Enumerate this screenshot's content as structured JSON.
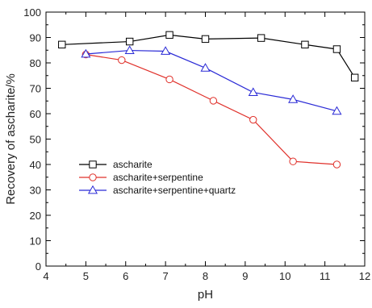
{
  "chart_data": {
    "type": "line",
    "title": "",
    "xlabel": "pH",
    "ylabel": "Recovery of ascharite/%",
    "xlim": [
      4,
      12
    ],
    "ylim": [
      0,
      100
    ],
    "xticks": [
      4,
      5,
      6,
      7,
      8,
      9,
      10,
      11,
      12
    ],
    "yticks": [
      0,
      10,
      20,
      30,
      40,
      50,
      60,
      70,
      80,
      90,
      100
    ],
    "grid": false,
    "legend_position": "lower-left",
    "series": [
      {
        "name": "ascharite",
        "color": "#000000",
        "marker": "square",
        "x": [
          4.4,
          6.1,
          7.1,
          8.0,
          9.4,
          10.5,
          11.3,
          11.75
        ],
        "y": [
          87.2,
          88.4,
          91.0,
          89.4,
          89.8,
          87.2,
          85.4,
          74.2
        ]
      },
      {
        "name": "ascharite+serpentine",
        "color": "#e0302a",
        "marker": "circle",
        "x": [
          5.0,
          5.9,
          7.1,
          8.2,
          9.2,
          10.2,
          11.3
        ],
        "y": [
          83.3,
          81.1,
          73.5,
          65.1,
          57.6,
          41.2,
          40.0
        ]
      },
      {
        "name": "ascharite+serpentine+quartz",
        "color": "#2a2ad6",
        "marker": "triangle",
        "x": [
          5.0,
          6.1,
          7.0,
          8.0,
          9.2,
          10.2,
          11.3
        ],
        "y": [
          83.5,
          84.9,
          84.6,
          78.0,
          68.4,
          65.6,
          61.0
        ]
      }
    ]
  }
}
